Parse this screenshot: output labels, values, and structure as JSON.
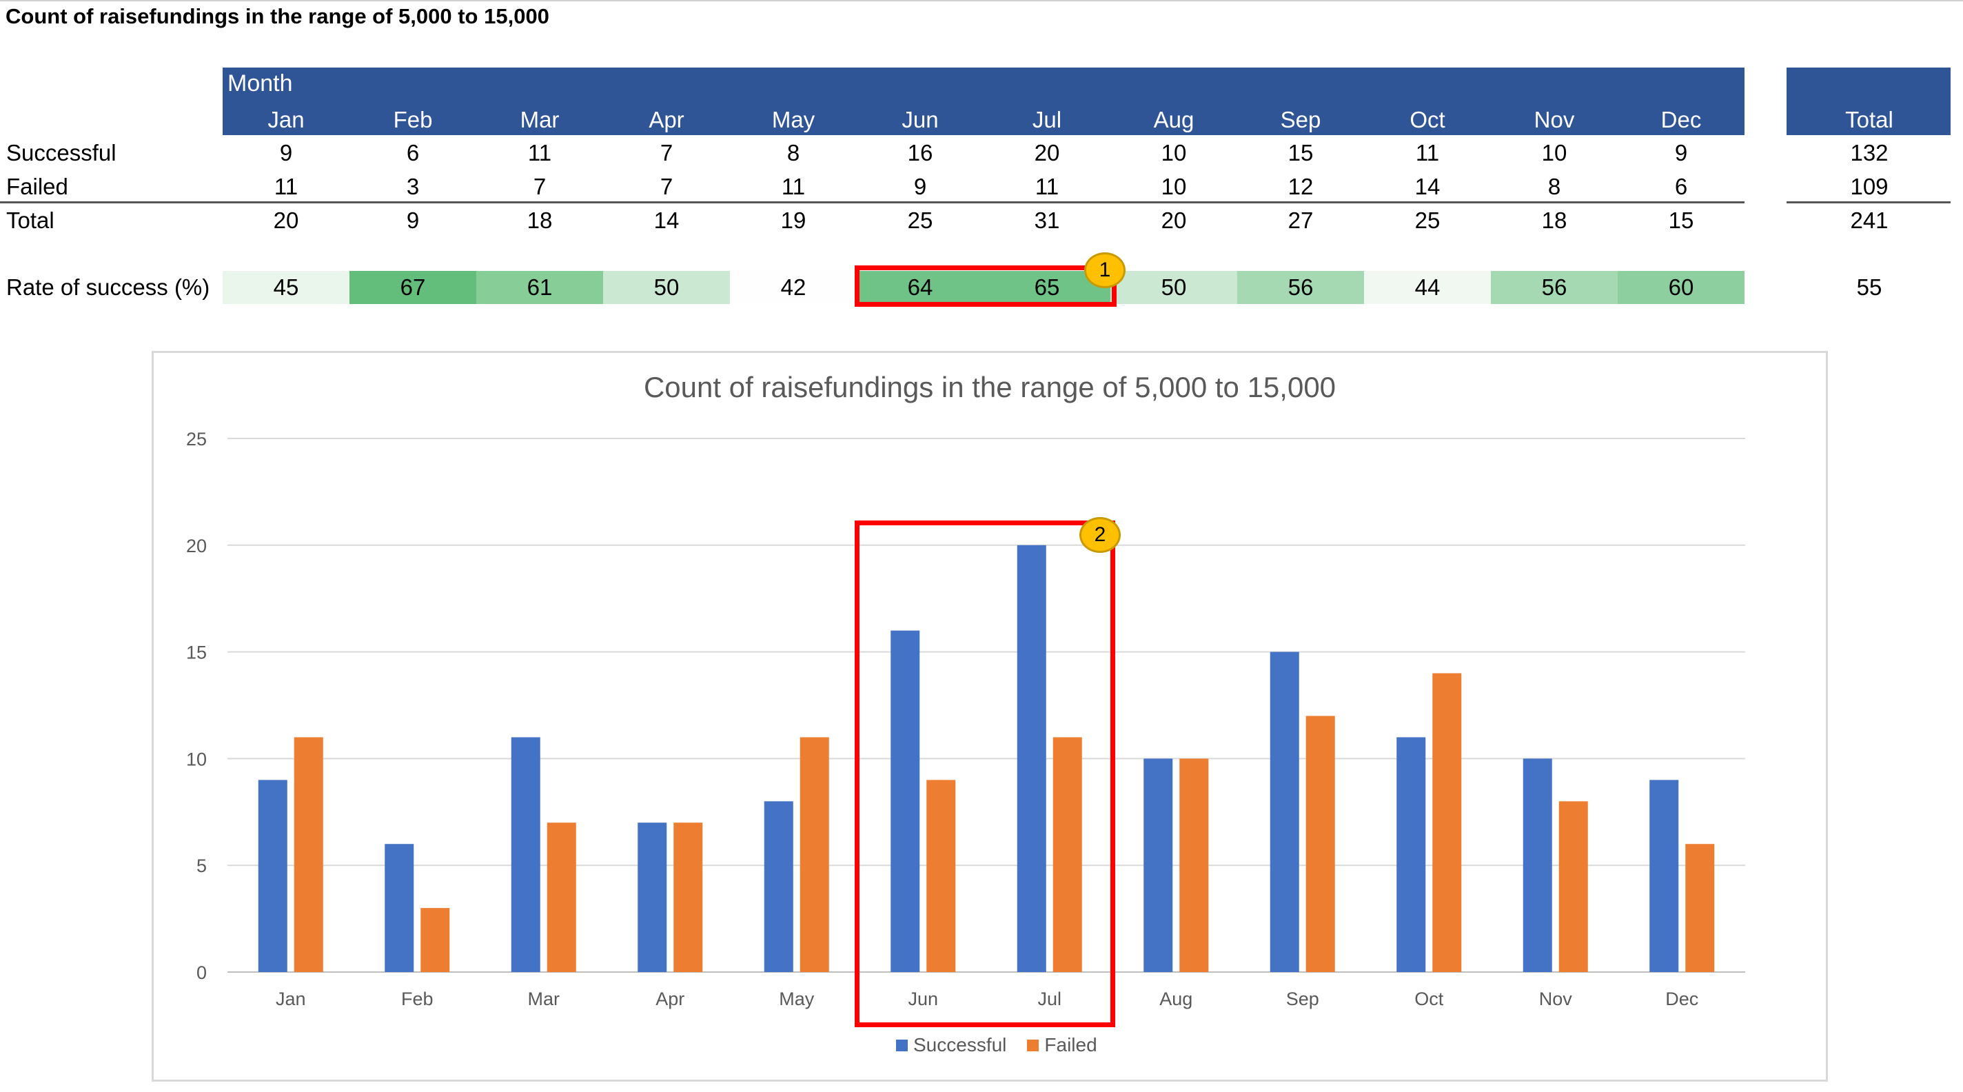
{
  "page_title": "Count of raisefundings in the range of 5,000 to 15,000",
  "table": {
    "month_label": "Month",
    "months": [
      "Jan",
      "Feb",
      "Mar",
      "Apr",
      "May",
      "Jun",
      "Jul",
      "Aug",
      "Sep",
      "Oct",
      "Nov",
      "Dec"
    ],
    "total_label": "Total",
    "rows": {
      "successful": {
        "label": "Successful",
        "values": [
          "9",
          "6",
          "11",
          "7",
          "8",
          "16",
          "20",
          "10",
          "15",
          "11",
          "10",
          "9"
        ],
        "total": "132"
      },
      "failed": {
        "label": "Failed",
        "values": [
          "11",
          "3",
          "7",
          "7",
          "11",
          "9",
          "11",
          "10",
          "12",
          "14",
          "8",
          "6"
        ],
        "total": "109"
      },
      "total": {
        "label": "Total",
        "values": [
          "20",
          "9",
          "18",
          "14",
          "19",
          "25",
          "31",
          "20",
          "27",
          "25",
          "18",
          "15"
        ],
        "total": "241"
      }
    },
    "rate": {
      "label": "Rate of success (%)",
      "values": [
        "45",
        "67",
        "61",
        "50",
        "42",
        "64",
        "65",
        "50",
        "56",
        "44",
        "56",
        "60"
      ],
      "total": "55"
    }
  },
  "badges": [
    "1",
    "2"
  ],
  "colors": {
    "header_fill": "#2f5597",
    "successful": "#4472c4",
    "failed": "#ed7d31",
    "highlight": "#ff0000",
    "badge": "#ffc000"
  },
  "chart_data": {
    "type": "bar",
    "title": "Count of raisefundings in the range of 5,000 to 15,000",
    "categories": [
      "Jan",
      "Feb",
      "Mar",
      "Apr",
      "May",
      "Jun",
      "Jul",
      "Aug",
      "Sep",
      "Oct",
      "Nov",
      "Dec"
    ],
    "series": [
      {
        "name": "Successful",
        "values": [
          9,
          6,
          11,
          7,
          8,
          16,
          20,
          10,
          15,
          11,
          10,
          9
        ]
      },
      {
        "name": "Failed",
        "values": [
          11,
          3,
          7,
          7,
          11,
          9,
          11,
          10,
          12,
          14,
          8,
          6
        ]
      }
    ],
    "ylim": [
      0,
      25
    ],
    "yticks": [
      "0",
      "5",
      "10",
      "15",
      "20",
      "25"
    ],
    "grid": true,
    "legend": "bottom",
    "xlabel": "",
    "ylabel": ""
  }
}
